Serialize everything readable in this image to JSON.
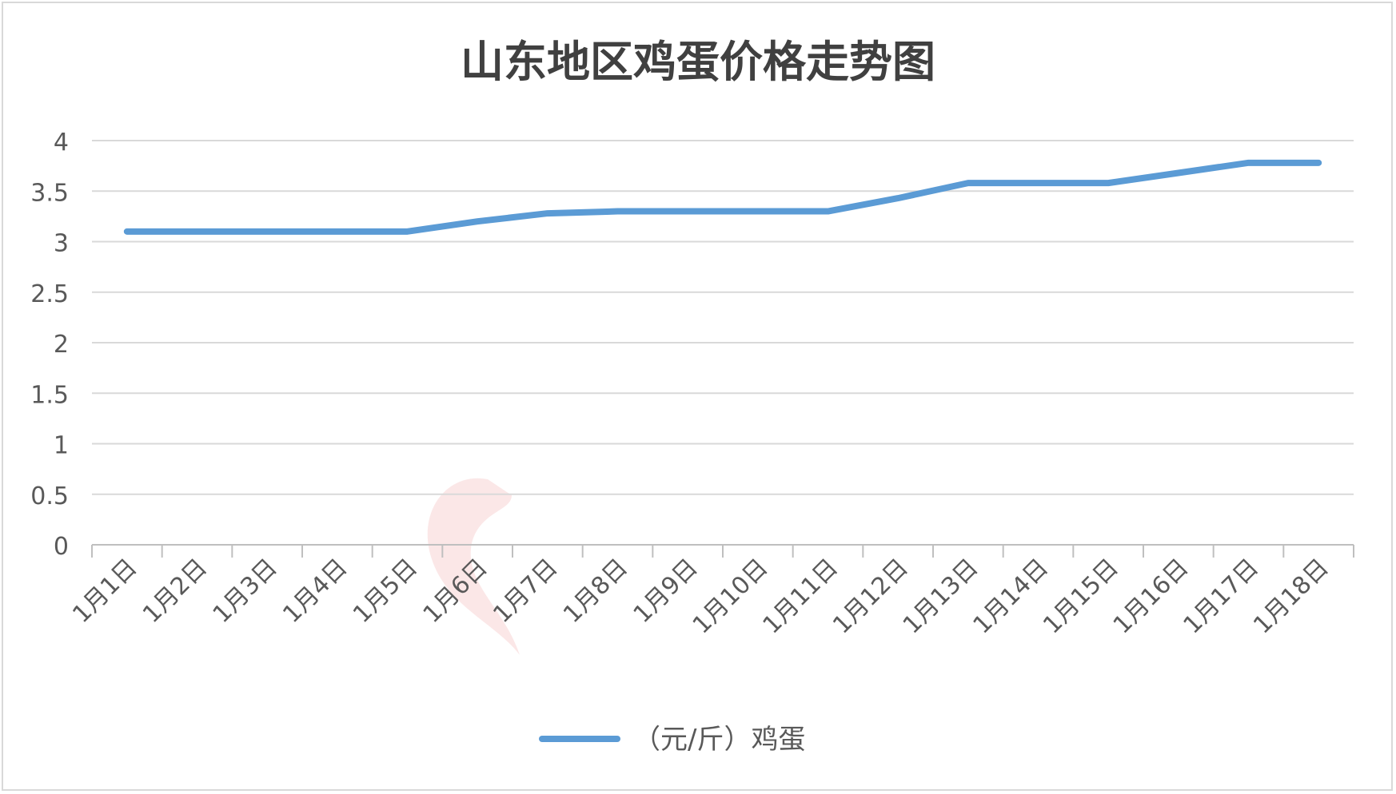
{
  "chart_data": {
    "type": "line",
    "title": "山东地区鸡蛋价格走势图",
    "xlabel": "",
    "ylabel": "",
    "categories": [
      "1月1日",
      "1月2日",
      "1月3日",
      "1月4日",
      "1月5日",
      "1月6日",
      "1月7日",
      "1月8日",
      "1月9日",
      "1月10日",
      "1月11日",
      "1月12日",
      "1月13日",
      "1月14日",
      "1月15日",
      "1月16日",
      "1月17日",
      "1月18日"
    ],
    "series": [
      {
        "name": "（元/斤）鸡蛋",
        "values": [
          3.1,
          3.1,
          3.1,
          3.1,
          3.1,
          3.2,
          3.28,
          3.3,
          3.3,
          3.3,
          3.3,
          3.43,
          3.58,
          3.58,
          3.58,
          3.68,
          3.78,
          3.78
        ],
        "color": "#5b9bd5"
      }
    ],
    "ylim": [
      0,
      4
    ],
    "yticks": [
      "0",
      "0.5",
      "1",
      "1.5",
      "2",
      "2.5",
      "3",
      "3.5",
      "4"
    ],
    "grid": true,
    "legend_position": "bottom"
  }
}
